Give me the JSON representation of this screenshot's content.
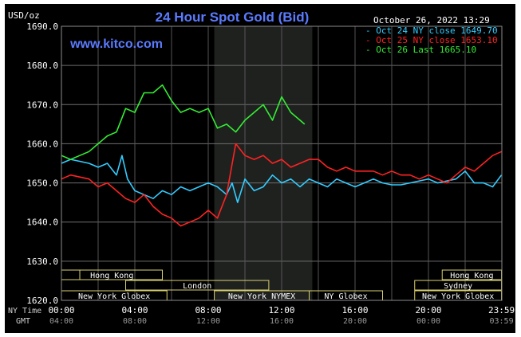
{
  "chart_data": {
    "type": "line",
    "title": "24 Hour Spot Gold (Bid)",
    "watermark": "www.kitco.com",
    "timestamp": "October 26, 2022 13:29",
    "ylabel": "USD/oz",
    "ylim": [
      1620,
      1690
    ],
    "y_ticks": [
      "1690.0",
      "1680.0",
      "1670.0",
      "1660.0",
      "1650.0",
      "1640.0",
      "1630.0",
      "1620.0"
    ],
    "x_row_label_ny": "NY Time",
    "x_row_label_gmt": "GMT",
    "x_ticks_ny": [
      "00:00",
      "04:00",
      "08:00",
      "12:00",
      "16:00",
      "20:00",
      "23:59"
    ],
    "x_ticks_gmt": [
      "04:00",
      "08:00",
      "12:00",
      "16:00",
      "20:00",
      "00:00",
      "03:59"
    ],
    "nymex_shade_hours": [
      8.33,
      13.67
    ],
    "sessions": [
      {
        "label": "Hong Kong",
        "start": 0,
        "end": 5.5
      },
      {
        "label": "",
        "start": 0,
        "end": 1
      },
      {
        "label": "London",
        "start": 3.5,
        "end": 11.3
      },
      {
        "label": "New York Globex",
        "start": 0,
        "end": 5.75
      },
      {
        "label": "New York NYMEX",
        "start": 8.33,
        "end": 13.5
      },
      {
        "label": "NY Globex",
        "start": 13.5,
        "end": 17.5
      },
      {
        "label": "Hong Kong",
        "start": 20.75,
        "end": 23.98
      },
      {
        "label": "Sydney",
        "start": 19.25,
        "end": 23.98
      },
      {
        "label": "New York Globex",
        "start": 19.25,
        "end": 23.98
      }
    ],
    "series": [
      {
        "name": "Oct 24 NY close 1649.70",
        "color": "#33ccff",
        "x": [
          0,
          0.5,
          1,
          1.5,
          2,
          2.5,
          3,
          3.3,
          3.6,
          4,
          4.5,
          5,
          5.5,
          6,
          6.5,
          7,
          7.5,
          8,
          8.5,
          9,
          9.3,
          9.6,
          10,
          10.5,
          11,
          11.5,
          12,
          12.5,
          13,
          13.5,
          14,
          14.5,
          15,
          15.5,
          16,
          16.5,
          17,
          17.5,
          18,
          18.5,
          19,
          19.5,
          20,
          20.5,
          21,
          21.5,
          22,
          22.5,
          23,
          23.5,
          23.98
        ],
        "values": [
          1655,
          1656,
          1655.5,
          1655,
          1654,
          1655,
          1652,
          1657,
          1651,
          1648,
          1647,
          1646,
          1648,
          1647,
          1649,
          1648,
          1649,
          1650,
          1649,
          1647,
          1650,
          1645,
          1651,
          1648,
          1649,
          1652,
          1650,
          1651,
          1649,
          1651,
          1650,
          1649,
          1651,
          1650,
          1649,
          1650,
          1651,
          1650,
          1649.5,
          1649.5,
          1650,
          1650.5,
          1651,
          1650,
          1650.5,
          1651,
          1653,
          1650,
          1650,
          1649,
          1652
        ]
      },
      {
        "name": "Oct 25 NY close 1653.10",
        "color": "#ff2222",
        "x": [
          0,
          0.5,
          1,
          1.5,
          2,
          2.5,
          3,
          3.5,
          4,
          4.5,
          5,
          5.5,
          6,
          6.5,
          7,
          7.5,
          8,
          8.5,
          9,
          9.5,
          10,
          10.5,
          11,
          11.5,
          12,
          12.5,
          13,
          13.5,
          14,
          14.5,
          15,
          15.5,
          16,
          16.5,
          17,
          17.5,
          18,
          18.5,
          19,
          19.5,
          20,
          20.5,
          21,
          21.5,
          22,
          22.5,
          23,
          23.5,
          23.98
        ],
        "values": [
          1651,
          1652,
          1651.5,
          1651,
          1649,
          1650,
          1648,
          1646,
          1645,
          1647,
          1644,
          1642,
          1641,
          1639,
          1640,
          1641,
          1643,
          1641,
          1647,
          1660,
          1657,
          1656,
          1657,
          1655,
          1656,
          1654,
          1655,
          1656,
          1656,
          1654,
          1653,
          1654,
          1653,
          1653,
          1653,
          1652,
          1653,
          1652,
          1652,
          1651,
          1652,
          1651,
          1650,
          1652,
          1654,
          1653,
          1655,
          1657,
          1658
        ]
      },
      {
        "name": "Oct 26 Last 1665.10",
        "color": "#33ee33",
        "x": [
          0,
          0.5,
          1,
          1.5,
          2,
          2.5,
          3,
          3.5,
          4,
          4.5,
          5,
          5.5,
          6,
          6.5,
          7,
          7.5,
          8,
          8.5,
          9,
          9.5,
          10,
          10.5,
          11,
          11.5,
          12,
          12.5,
          13,
          13.25
        ],
        "values": [
          1657,
          1656,
          1657,
          1658,
          1660,
          1662,
          1663,
          1669,
          1668,
          1673,
          1673,
          1675,
          1671,
          1668,
          1669,
          1668,
          1669,
          1664,
          1665,
          1663,
          1666,
          1668,
          1670,
          1666,
          1672,
          1668,
          1666,
          1665
        ]
      }
    ]
  }
}
